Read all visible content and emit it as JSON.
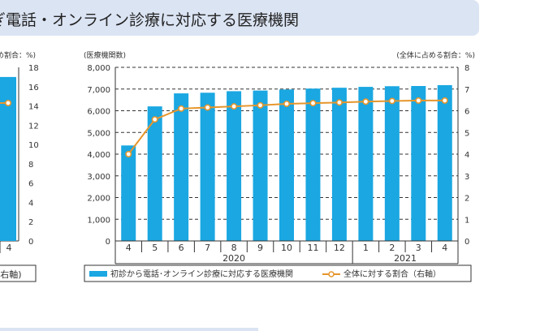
{
  "banner": {
    "title": "ぎ電話・オンライン診療に対応する医療機関"
  },
  "left_chart": {
    "ylabel_partial": "め割合：%)",
    "legend_partial": "(右軸)",
    "x_tick": "4"
  },
  "colors": {
    "bar": "#1aa7e2",
    "line": "#e6962c",
    "marker_fill": "#ffffff",
    "banner": "#dbe4f3"
  },
  "chart_data": [
    {
      "type": "bar+line",
      "note": "left chart, partially visible (cropped at the left edge)",
      "categories": [
        "4"
      ],
      "series": [
        {
          "name": "割合",
          "axis": "right",
          "type": "line",
          "values": [
            14.3
          ]
        }
      ],
      "y_right": {
        "ticks": [
          "0",
          "2",
          "4",
          "6",
          "8",
          "10",
          "12",
          "14",
          "16",
          "18"
        ],
        "ylim": [
          0,
          18
        ]
      },
      "bar_value_on_right_scale": 17.0
    },
    {
      "type": "bar+line",
      "categories": [
        "4",
        "5",
        "6",
        "7",
        "8",
        "9",
        "10",
        "11",
        "12",
        "1",
        "2",
        "3",
        "4"
      ],
      "year_labels": [
        {
          "label": "2020",
          "from": 0,
          "to": 8
        },
        {
          "label": "2021",
          "from": 9,
          "to": 12
        }
      ],
      "series": [
        {
          "name": "初診から電話･オンライン診療に対応する医療機関",
          "axis": "left",
          "type": "bar",
          "values": [
            4400,
            6200,
            6800,
            6830,
            6900,
            6930,
            6980,
            7020,
            7060,
            7100,
            7130,
            7140,
            7180
          ]
        },
        {
          "name": "全体に対する割合（右軸）",
          "axis": "right",
          "type": "line",
          "values": [
            4.0,
            5.6,
            6.1,
            6.15,
            6.2,
            6.25,
            6.32,
            6.35,
            6.38,
            6.42,
            6.45,
            6.47,
            6.47
          ]
        }
      ],
      "y_left": {
        "label": "(医療機関数)",
        "ticks": [
          "0",
          "1,000",
          "2,000",
          "3,000",
          "4,000",
          "5,000",
          "6,000",
          "7,000",
          "8,000"
        ],
        "ylim": [
          0,
          8000
        ]
      },
      "y_right": {
        "label": "(全体に占める割合：%)",
        "ticks": [
          "0",
          "1",
          "2",
          "3",
          "4",
          "5",
          "6",
          "7",
          "8"
        ],
        "ylim": [
          0,
          8
        ]
      },
      "grid": "dashed horizontal",
      "legend_position": "bottom"
    }
  ]
}
